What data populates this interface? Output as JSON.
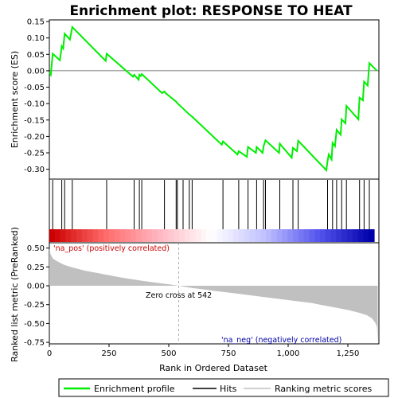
{
  "chart_data": {
    "type": "line",
    "title": "Enrichment plot: RESPONSE TO HEAT",
    "x_range": [
      0,
      1380
    ],
    "x_ticks": [
      0,
      250,
      500,
      750,
      1000,
      1250
    ],
    "x_tick_labels": [
      "0",
      "250",
      "500",
      "750",
      "1,000",
      "1,250"
    ],
    "xlabel": "Rank in Ordered Dataset",
    "es_panel": {
      "ylabel": "Enrichment score (ES)",
      "ylim": [
        -0.33,
        0.155
      ],
      "y_ticks": [
        0.15,
        0.1,
        0.05,
        0.0,
        -0.05,
        -0.1,
        -0.15,
        -0.2,
        -0.25,
        -0.3
      ],
      "y_tick_labels": [
        "0.15",
        "0.10",
        "0.05",
        "0.00",
        "-0.05",
        "-0.10",
        "-0.15",
        "-0.20",
        "-0.25",
        "-0.30"
      ],
      "grid": false
    },
    "metric_panel": {
      "ylabel": "Ranked list metric (PreRanked)",
      "ylim": [
        -0.77,
        0.57
      ],
      "y_ticks": [
        0.5,
        0.25,
        0.0,
        -0.25,
        -0.5,
        -0.75
      ],
      "y_tick_labels": [
        "0.50",
        "0.25",
        "0.00",
        "-0.25",
        "-0.50",
        "-0.75"
      ],
      "zero_cross": 542,
      "zero_cross_label": "Zero cross at 542",
      "pos_label": "'na_pos' (positively correlated)",
      "neg_label": "'na_neg' (negatively correlated)"
    },
    "series": [
      {
        "name": "Enrichment profile",
        "color": "#00ff00",
        "points": [
          [
            0,
            -0.005
          ],
          [
            6,
            -0.012
          ],
          [
            14,
            0.052
          ],
          [
            44,
            0.032
          ],
          [
            52,
            0.075
          ],
          [
            58,
            0.068
          ],
          [
            64,
            0.113
          ],
          [
            86,
            0.095
          ],
          [
            96,
            0.133
          ],
          [
            236,
            0.03
          ],
          [
            240,
            0.052
          ],
          [
            350,
            -0.018
          ],
          [
            355,
            -0.012
          ],
          [
            374,
            -0.027
          ],
          [
            377,
            -0.012
          ],
          [
            383,
            -0.016
          ],
          [
            387,
            -0.01
          ],
          [
            472,
            -0.068
          ],
          [
            482,
            -0.063
          ],
          [
            487,
            -0.068
          ],
          [
            531,
            -0.094
          ],
          [
            536,
            -0.099
          ],
          [
            560,
            -0.115
          ],
          [
            586,
            -0.133
          ],
          [
            598,
            -0.14
          ],
          [
            722,
            -0.225
          ],
          [
            727,
            -0.215
          ],
          [
            788,
            -0.255
          ],
          [
            793,
            -0.245
          ],
          [
            827,
            -0.262
          ],
          [
            832,
            -0.232
          ],
          [
            865,
            -0.25
          ],
          [
            868,
            -0.232
          ],
          [
            893,
            -0.25
          ],
          [
            897,
            -0.23
          ],
          [
            905,
            -0.212
          ],
          [
            962,
            -0.25
          ],
          [
            965,
            -0.222
          ],
          [
            1015,
            -0.265
          ],
          [
            1020,
            -0.235
          ],
          [
            1037,
            -0.245
          ],
          [
            1042,
            -0.213
          ],
          [
            1160,
            -0.303
          ],
          [
            1165,
            -0.275
          ],
          [
            1170,
            -0.255
          ],
          [
            1182,
            -0.27
          ],
          [
            1186,
            -0.22
          ],
          [
            1196,
            -0.23
          ],
          [
            1203,
            -0.18
          ],
          [
            1220,
            -0.195
          ],
          [
            1224,
            -0.148
          ],
          [
            1240,
            -0.16
          ],
          [
            1244,
            -0.107
          ],
          [
            1294,
            -0.148
          ],
          [
            1299,
            -0.082
          ],
          [
            1313,
            -0.09
          ],
          [
            1318,
            -0.033
          ],
          [
            1333,
            -0.045
          ],
          [
            1340,
            0.023
          ],
          [
            1372,
            0.0
          ]
        ]
      },
      {
        "name": "Hits",
        "color": "#000000",
        "positions": [
          14,
          52,
          64,
          96,
          240,
          355,
          377,
          387,
          482,
          531,
          536,
          560,
          586,
          598,
          727,
          793,
          832,
          868,
          897,
          905,
          965,
          1020,
          1042,
          1165,
          1186,
          1203,
          1224,
          1244,
          1299,
          1318,
          1340
        ]
      },
      {
        "name": "Ranking metric scores",
        "color": "#c0c0c0",
        "curve": [
          [
            0,
            0.5
          ],
          [
            5,
            0.42
          ],
          [
            15,
            0.36
          ],
          [
            30,
            0.33
          ],
          [
            60,
            0.28
          ],
          [
            100,
            0.24
          ],
          [
            150,
            0.2
          ],
          [
            200,
            0.17
          ],
          [
            250,
            0.14
          ],
          [
            300,
            0.11
          ],
          [
            350,
            0.085
          ],
          [
            400,
            0.06
          ],
          [
            450,
            0.04
          ],
          [
            500,
            0.02
          ],
          [
            542,
            0.0
          ],
          [
            600,
            -0.03
          ],
          [
            700,
            -0.07
          ],
          [
            800,
            -0.11
          ],
          [
            900,
            -0.15
          ],
          [
            1000,
            -0.19
          ],
          [
            1050,
            -0.21
          ],
          [
            1100,
            -0.23
          ],
          [
            1150,
            -0.26
          ],
          [
            1200,
            -0.29
          ],
          [
            1250,
            -0.32
          ],
          [
            1300,
            -0.36
          ],
          [
            1330,
            -0.39
          ],
          [
            1350,
            -0.43
          ],
          [
            1365,
            -0.49
          ],
          [
            1372,
            -0.55
          ],
          [
            1375,
            -0.75
          ]
        ]
      }
    ],
    "bar_colors": [
      "#cc0000",
      "#ff6b6b",
      "#ffb6c1",
      "#ffffff",
      "#c0c0ff",
      "#5555ee",
      "#0000aa"
    ]
  },
  "legend": {
    "items": [
      {
        "label": "Enrichment profile",
        "color": "#00ff00"
      },
      {
        "label": "Hits",
        "color": "#000000"
      },
      {
        "label": "Ranking metric scores",
        "color": "#c0c0c0"
      }
    ]
  }
}
